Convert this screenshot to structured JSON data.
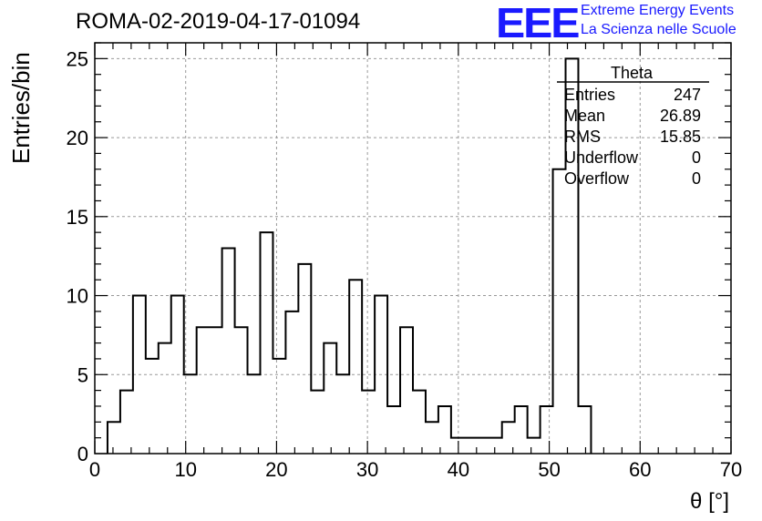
{
  "header": {
    "run_title": "ROMA-02-2019-04-17-01094",
    "logo_text": "EEE",
    "logo_line1": "Extreme Energy Events",
    "logo_line2": "La Scienza nelle Scuole",
    "logo_color": "#1a1aff"
  },
  "chart_data": {
    "type": "bar",
    "histogram": true,
    "xlabel": "θ [°]",
    "ylabel": "Entries/bin",
    "xlim": [
      0,
      70
    ],
    "ylim": [
      0,
      26
    ],
    "xticks": [
      0,
      10,
      20,
      30,
      40,
      50,
      60,
      70
    ],
    "yticks": [
      0,
      5,
      10,
      15,
      20,
      25
    ],
    "grid": true,
    "bin_width": 1.4,
    "bin_start": 1.4,
    "values": [
      2,
      4,
      10,
      6,
      7,
      10,
      5,
      8,
      8,
      13,
      8,
      5,
      14,
      6,
      9,
      12,
      4,
      7,
      5,
      11,
      4,
      10,
      3,
      8,
      4,
      2,
      3,
      1,
      1,
      1,
      1,
      2,
      3,
      1,
      3,
      18,
      25,
      3
    ],
    "stats_box": {
      "title": "Theta",
      "rows": [
        {
          "label": "Entries",
          "value": "247"
        },
        {
          "label": "Mean",
          "value": "26.89"
        },
        {
          "label": "RMS",
          "value": "15.85"
        },
        {
          "label": "Underflow",
          "value": "0"
        },
        {
          "label": "Overflow",
          "value": "0"
        }
      ]
    }
  }
}
